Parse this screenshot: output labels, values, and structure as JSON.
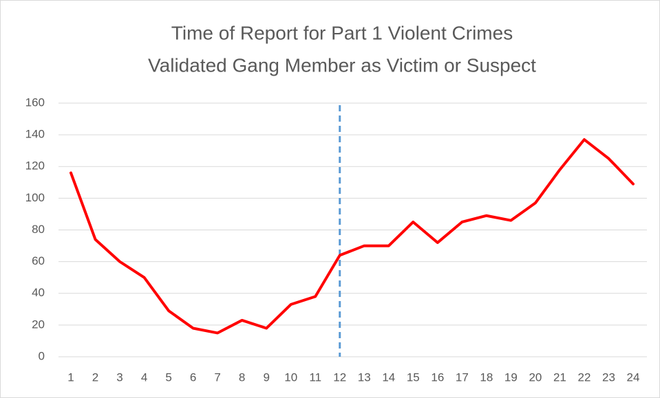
{
  "chart_data": {
    "type": "line",
    "title": [
      "Time of Report for Part 1 Violent Crimes",
      "Validated Gang Member as Victim or Suspect"
    ],
    "categories": [
      "1",
      "2",
      "3",
      "4",
      "5",
      "6",
      "7",
      "8",
      "9",
      "10",
      "11",
      "12",
      "13",
      "14",
      "15",
      "16",
      "17",
      "18",
      "19",
      "20",
      "21",
      "22",
      "23",
      "24"
    ],
    "series": [
      {
        "color": "#ff0000",
        "values": [
          116,
          74,
          60,
          50,
          29,
          18,
          15,
          23,
          18,
          33,
          38,
          64,
          70,
          70,
          85,
          72,
          85,
          89,
          86,
          97,
          118,
          137,
          125,
          109
        ]
      }
    ],
    "ylim": [
      0,
      160
    ],
    "yticks": [
      0,
      20,
      40,
      60,
      80,
      100,
      120,
      140,
      160
    ],
    "grid": true,
    "reference_line": {
      "category": "12",
      "color": "#5b9bd5",
      "style": "dashed"
    }
  }
}
